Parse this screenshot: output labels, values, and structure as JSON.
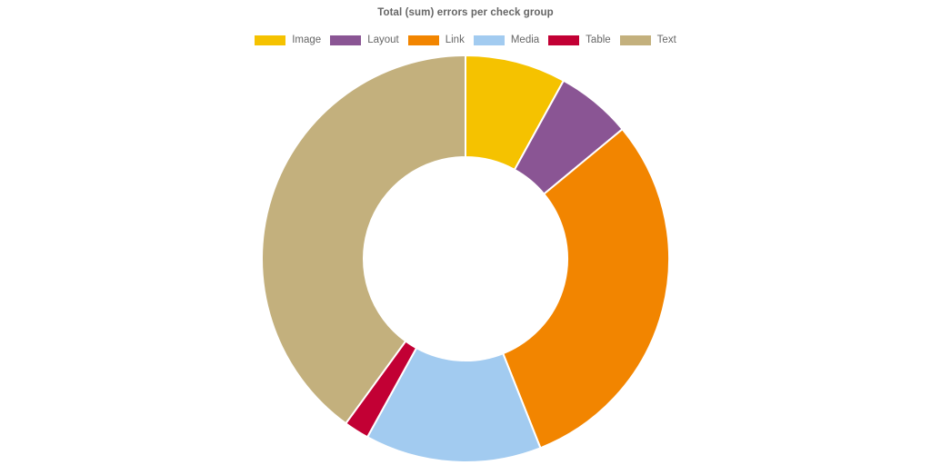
{
  "chart_data": {
    "type": "pie",
    "variant": "doughnut",
    "title": "Total (sum) errors per check group",
    "legend_position": "top",
    "categories": [
      "Image",
      "Layout",
      "Link",
      "Media",
      "Table",
      "Text"
    ],
    "values": [
      8,
      6,
      30,
      14,
      2,
      40
    ],
    "colors": [
      "#f5c200",
      "#8a5594",
      "#f28500",
      "#a2cbf0",
      "#c20034",
      "#c3b07d"
    ]
  }
}
